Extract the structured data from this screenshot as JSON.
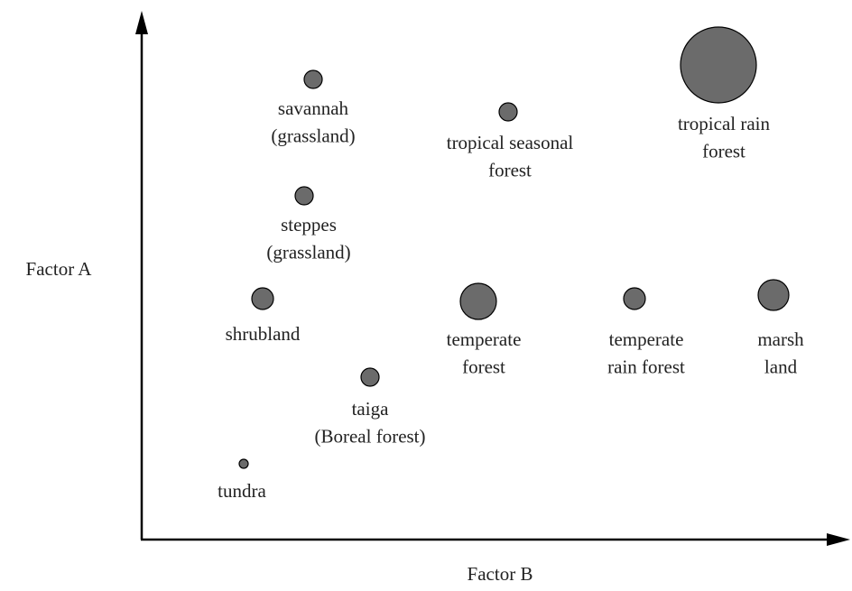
{
  "axes": {
    "y_label": "Factor A",
    "x_label": "Factor B"
  },
  "nodes": [
    {
      "lines": [
        "savannah",
        "(grassland)"
      ]
    },
    {
      "lines": [
        "tropical seasonal",
        "forest"
      ]
    },
    {
      "lines": [
        "tropical rain",
        "forest"
      ]
    },
    {
      "lines": [
        "steppes",
        "(grassland)"
      ]
    },
    {
      "lines": [
        "shrubland"
      ]
    },
    {
      "lines": [
        "temperate",
        "forest"
      ]
    },
    {
      "lines": [
        "temperate",
        "rain forest"
      ]
    },
    {
      "lines": [
        "marsh",
        "land"
      ]
    },
    {
      "lines": [
        "taiga",
        "(Boreal forest)"
      ]
    },
    {
      "lines": [
        "tundra"
      ]
    }
  ]
}
